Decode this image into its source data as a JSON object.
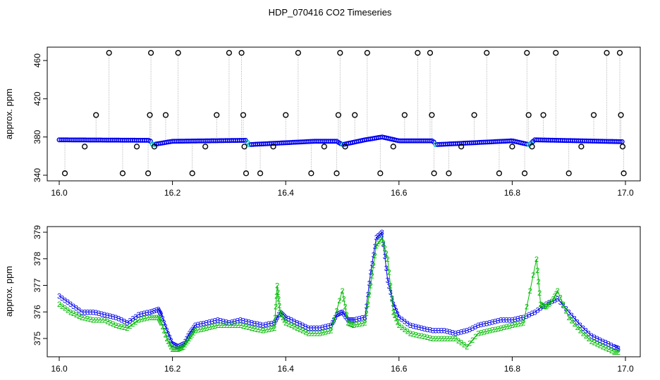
{
  "figure": {
    "title": "HDP_070416  CO2 Timeseries"
  },
  "chart_data": [
    {
      "type": "scatter",
      "title": "HDP_070416  CO2 Timeseries",
      "xlabel": "",
      "ylabel": "approx. ppm",
      "xlim": [
        16.0,
        17.0
      ],
      "ylim": [
        340,
        470
      ],
      "xticks": [
        16.0,
        16.2,
        16.4,
        16.6,
        16.8,
        17.0
      ],
      "xtick_labels": [
        "16.0",
        "16.2",
        "16.4",
        "16.6",
        "16.8",
        "17.0"
      ],
      "yticks": [
        340,
        380,
        420,
        460
      ],
      "ytick_labels": [
        "340",
        "380",
        "420",
        "460"
      ],
      "grid": false,
      "baseline": {
        "points": [
          [
            16.0,
            377
          ],
          [
            16.16,
            376.5
          ],
          [
            16.165,
            372
          ],
          [
            16.2,
            375.5
          ],
          [
            16.33,
            376.5
          ],
          [
            16.335,
            372
          ],
          [
            16.45,
            375.5
          ],
          [
            16.49,
            375.5
          ],
          [
            16.5,
            372
          ],
          [
            16.54,
            377
          ],
          [
            16.57,
            380
          ],
          [
            16.6,
            376
          ],
          [
            16.66,
            376
          ],
          [
            16.665,
            372
          ],
          [
            16.8,
            376
          ],
          [
            16.83,
            372
          ],
          [
            16.84,
            377
          ],
          [
            17.0,
            375
          ]
        ],
        "color": "#0000ee"
      },
      "spikes": [
        {
          "x": 16.01,
          "y": 342
        },
        {
          "x": 16.045,
          "y": 370
        },
        {
          "x": 16.065,
          "y": 403
        },
        {
          "x": 16.088,
          "y": 468
        },
        {
          "x": 16.112,
          "y": 342
        },
        {
          "x": 16.137,
          "y": 370
        },
        {
          "x": 16.157,
          "y": 342
        },
        {
          "x": 16.16,
          "y": 403
        },
        {
          "x": 16.162,
          "y": 468
        },
        {
          "x": 16.168,
          "y": 370
        },
        {
          "x": 16.188,
          "y": 403
        },
        {
          "x": 16.21,
          "y": 468
        },
        {
          "x": 16.235,
          "y": 342
        },
        {
          "x": 16.258,
          "y": 370
        },
        {
          "x": 16.278,
          "y": 403
        },
        {
          "x": 16.3,
          "y": 468
        },
        {
          "x": 16.322,
          "y": 468
        },
        {
          "x": 16.325,
          "y": 403
        },
        {
          "x": 16.327,
          "y": 370
        },
        {
          "x": 16.33,
          "y": 342
        },
        {
          "x": 16.355,
          "y": 342
        },
        {
          "x": 16.378,
          "y": 370
        },
        {
          "x": 16.4,
          "y": 403
        },
        {
          "x": 16.422,
          "y": 468
        },
        {
          "x": 16.445,
          "y": 342
        },
        {
          "x": 16.468,
          "y": 370
        },
        {
          "x": 16.49,
          "y": 342
        },
        {
          "x": 16.493,
          "y": 403
        },
        {
          "x": 16.496,
          "y": 468
        },
        {
          "x": 16.505,
          "y": 370
        },
        {
          "x": 16.522,
          "y": 403
        },
        {
          "x": 16.544,
          "y": 468
        },
        {
          "x": 16.567,
          "y": 342
        },
        {
          "x": 16.59,
          "y": 370
        },
        {
          "x": 16.61,
          "y": 403
        },
        {
          "x": 16.633,
          "y": 468
        },
        {
          "x": 16.655,
          "y": 468
        },
        {
          "x": 16.658,
          "y": 403
        },
        {
          "x": 16.662,
          "y": 342
        },
        {
          "x": 16.688,
          "y": 342
        },
        {
          "x": 16.71,
          "y": 370
        },
        {
          "x": 16.733,
          "y": 403
        },
        {
          "x": 16.755,
          "y": 468
        },
        {
          "x": 16.777,
          "y": 342
        },
        {
          "x": 16.8,
          "y": 370
        },
        {
          "x": 16.822,
          "y": 342
        },
        {
          "x": 16.826,
          "y": 468
        },
        {
          "x": 16.829,
          "y": 403
        },
        {
          "x": 16.835,
          "y": 370
        },
        {
          "x": 16.855,
          "y": 403
        },
        {
          "x": 16.877,
          "y": 468
        },
        {
          "x": 16.9,
          "y": 342
        },
        {
          "x": 16.922,
          "y": 370
        },
        {
          "x": 16.944,
          "y": 403
        },
        {
          "x": 16.967,
          "y": 468
        },
        {
          "x": 16.99,
          "y": 468
        },
        {
          "x": 16.992,
          "y": 403
        },
        {
          "x": 16.995,
          "y": 370
        },
        {
          "x": 16.997,
          "y": 342
        }
      ],
      "spike_color": "#000000",
      "bridge_color": "#00bfbf",
      "bridges": [
        16.165,
        16.335,
        16.5,
        16.665,
        16.83
      ]
    },
    {
      "type": "scatter",
      "title": "",
      "xlabel": "",
      "ylabel": "approx. ppm",
      "xlim": [
        16.0,
        17.0
      ],
      "ylim": [
        374.4,
        379.2
      ],
      "xticks": [
        16.0,
        16.2,
        16.4,
        16.6,
        16.8,
        17.0
      ],
      "xtick_labels": [
        "16.0",
        "16.2",
        "16.4",
        "16.6",
        "16.8",
        "17.0"
      ],
      "yticks": [
        375,
        376,
        377,
        378,
        379
      ],
      "ytick_labels": [
        "375",
        "376",
        "377",
        "378",
        "379"
      ],
      "grid": false,
      "series": [
        {
          "marker": "3",
          "color": "#0000ee",
          "points": [
            [
              16.0,
              376.6
            ],
            [
              16.02,
              376.3
            ],
            [
              16.04,
              376.0
            ],
            [
              16.06,
              376.0
            ],
            [
              16.08,
              375.9
            ],
            [
              16.1,
              375.8
            ],
            [
              16.12,
              375.6
            ],
            [
              16.14,
              375.9
            ],
            [
              16.16,
              376.0
            ],
            [
              16.175,
              376.1
            ],
            [
              16.18,
              375.9
            ],
            [
              16.19,
              375.3
            ],
            [
              16.2,
              374.8
            ],
            [
              16.21,
              374.7
            ],
            [
              16.22,
              374.8
            ],
            [
              16.23,
              375.2
            ],
            [
              16.24,
              375.5
            ],
            [
              16.26,
              375.6
            ],
            [
              16.28,
              375.7
            ],
            [
              16.3,
              375.6
            ],
            [
              16.32,
              375.7
            ],
            [
              16.34,
              375.6
            ],
            [
              16.36,
              375.5
            ],
            [
              16.38,
              375.6
            ],
            [
              16.39,
              376.0
            ],
            [
              16.4,
              375.8
            ],
            [
              16.42,
              375.6
            ],
            [
              16.44,
              375.4
            ],
            [
              16.46,
              375.4
            ],
            [
              16.48,
              375.5
            ],
            [
              16.49,
              375.9
            ],
            [
              16.5,
              376.0
            ],
            [
              16.51,
              375.7
            ],
            [
              16.52,
              375.7
            ],
            [
              16.54,
              375.8
            ],
            [
              16.55,
              377.5
            ],
            [
              16.56,
              378.8
            ],
            [
              16.57,
              379.0
            ],
            [
              16.58,
              377.2
            ],
            [
              16.59,
              376.3
            ],
            [
              16.6,
              375.8
            ],
            [
              16.62,
              375.5
            ],
            [
              16.64,
              375.4
            ],
            [
              16.66,
              375.3
            ],
            [
              16.68,
              375.3
            ],
            [
              16.7,
              375.2
            ],
            [
              16.72,
              375.3
            ],
            [
              16.74,
              375.5
            ],
            [
              16.76,
              375.6
            ],
            [
              16.78,
              375.7
            ],
            [
              16.8,
              375.7
            ],
            [
              16.82,
              375.8
            ],
            [
              16.84,
              376.0
            ],
            [
              16.86,
              376.3
            ],
            [
              16.88,
              376.5
            ],
            [
              16.9,
              376.0
            ],
            [
              16.92,
              375.5
            ],
            [
              16.94,
              375.1
            ],
            [
              16.96,
              374.9
            ],
            [
              16.98,
              374.7
            ],
            [
              16.99,
              374.6
            ]
          ]
        },
        {
          "marker": "2",
          "color": "#00bb00",
          "points": [
            [
              16.0,
              376.3
            ],
            [
              16.02,
              376.0
            ],
            [
              16.04,
              375.8
            ],
            [
              16.06,
              375.7
            ],
            [
              16.08,
              375.7
            ],
            [
              16.1,
              375.5
            ],
            [
              16.12,
              375.4
            ],
            [
              16.14,
              375.7
            ],
            [
              16.16,
              375.8
            ],
            [
              16.175,
              375.8
            ],
            [
              16.18,
              375.6
            ],
            [
              16.19,
              375.0
            ],
            [
              16.2,
              374.6
            ],
            [
              16.21,
              374.6
            ],
            [
              16.22,
              374.7
            ],
            [
              16.23,
              375.0
            ],
            [
              16.24,
              375.3
            ],
            [
              16.26,
              375.4
            ],
            [
              16.28,
              375.5
            ],
            [
              16.3,
              375.5
            ],
            [
              16.32,
              375.5
            ],
            [
              16.34,
              375.4
            ],
            [
              16.36,
              375.3
            ],
            [
              16.38,
              375.4
            ],
            [
              16.385,
              377.0
            ],
            [
              16.39,
              376.0
            ],
            [
              16.4,
              375.6
            ],
            [
              16.42,
              375.4
            ],
            [
              16.44,
              375.2
            ],
            [
              16.46,
              375.2
            ],
            [
              16.48,
              375.3
            ],
            [
              16.5,
              376.8
            ],
            [
              16.51,
              375.6
            ],
            [
              16.52,
              375.5
            ],
            [
              16.54,
              375.6
            ],
            [
              16.55,
              377.0
            ],
            [
              16.56,
              378.5
            ],
            [
              16.57,
              378.8
            ],
            [
              16.58,
              378.0
            ],
            [
              16.59,
              376.0
            ],
            [
              16.6,
              375.5
            ],
            [
              16.62,
              375.2
            ],
            [
              16.64,
              375.1
            ],
            [
              16.66,
              375.0
            ],
            [
              16.68,
              375.0
            ],
            [
              16.7,
              375.0
            ],
            [
              16.72,
              374.7
            ],
            [
              16.74,
              375.2
            ],
            [
              16.76,
              375.3
            ],
            [
              16.78,
              375.4
            ],
            [
              16.8,
              375.5
            ],
            [
              16.82,
              375.6
            ],
            [
              16.843,
              378.0
            ],
            [
              16.85,
              376.3
            ],
            [
              16.86,
              376.2
            ],
            [
              16.87,
              376.4
            ],
            [
              16.88,
              376.8
            ],
            [
              16.9,
              375.8
            ],
            [
              16.92,
              375.3
            ],
            [
              16.94,
              374.9
            ],
            [
              16.96,
              374.7
            ],
            [
              16.98,
              374.5
            ],
            [
              16.99,
              374.5
            ]
          ]
        }
      ]
    }
  ]
}
